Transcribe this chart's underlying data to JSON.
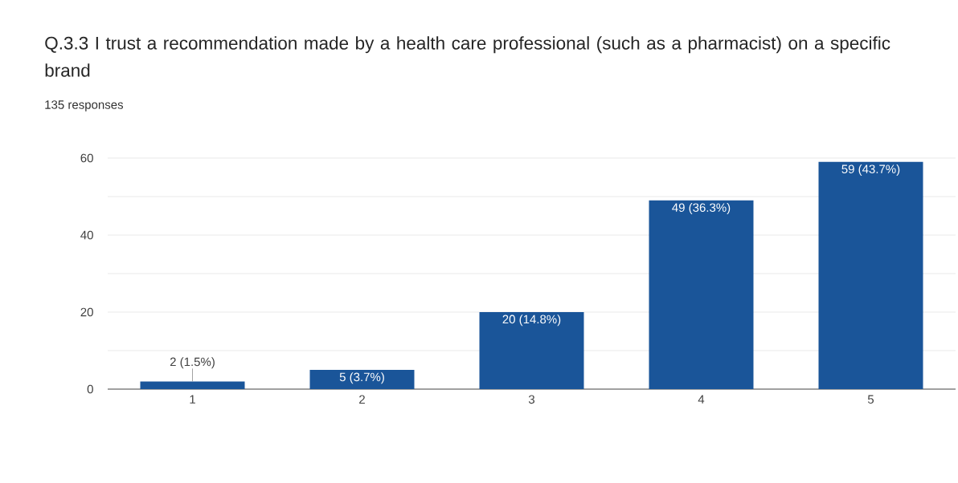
{
  "chart_data": {
    "type": "bar",
    "title": "Q.3.3 I trust a recommendation made by a health care professional (such as a pharmacist) on a specific brand",
    "subtitle": "135 responses",
    "categories": [
      "1",
      "2",
      "3",
      "4",
      "5"
    ],
    "values": [
      2,
      5,
      20,
      49,
      59
    ],
    "color": "#1a5599",
    "value_labels": [
      "2 (1.5%)",
      "5 (3.7%)",
      "20 (14.8%)",
      "49 (36.3%)",
      "59 (43.7%)"
    ],
    "ylim": [
      0,
      60
    ],
    "yticks": [
      0,
      {
        "value": 10,
        "label": null
      },
      20,
      {
        "value": 30,
        "label": null
      },
      40,
      {
        "value": 50,
        "label": null
      },
      60
    ],
    "grid": "y"
  }
}
